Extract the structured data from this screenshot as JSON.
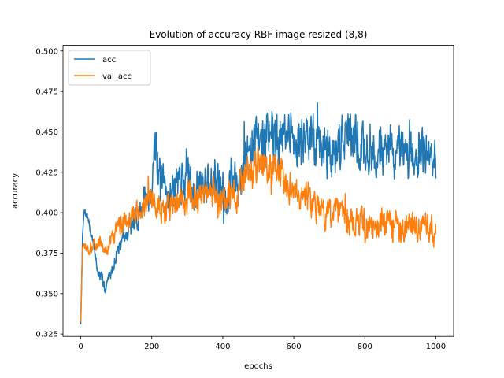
{
  "chart_data": {
    "type": "line",
    "title": "Evolution of accuracy RBF image resized (8,8)",
    "xlabel": "epochs",
    "ylabel": "accuracy",
    "xlim": [
      -50,
      1050
    ],
    "ylim": [
      0.3235,
      0.5035
    ],
    "x_ticks": [
      0,
      200,
      400,
      600,
      800,
      1000
    ],
    "y_ticks": [
      0.325,
      0.35,
      0.375,
      0.4,
      0.425,
      0.45,
      0.475,
      0.5
    ],
    "x_tick_labels": [
      "0",
      "200",
      "400",
      "600",
      "800",
      "1000"
    ],
    "y_tick_labels": [
      "0.325",
      "0.350",
      "0.375",
      "0.400",
      "0.425",
      "0.450",
      "0.475",
      "0.500"
    ],
    "grid": false,
    "legend_position": "upper-left",
    "series": [
      {
        "name": "acc",
        "color": "#1f77b4",
        "x": [
          0,
          5,
          10,
          20,
          30,
          40,
          50,
          60,
          70,
          80,
          90,
          100,
          120,
          140,
          160,
          180,
          200,
          210,
          220,
          240,
          260,
          280,
          300,
          320,
          340,
          360,
          380,
          400,
          420,
          440,
          460,
          480,
          500,
          520,
          540,
          560,
          580,
          600,
          620,
          640,
          660,
          680,
          700,
          720,
          740,
          760,
          780,
          800,
          820,
          840,
          860,
          880,
          900,
          920,
          940,
          960,
          980,
          1000
        ],
        "y": [
          0.331,
          0.385,
          0.402,
          0.398,
          0.385,
          0.375,
          0.362,
          0.358,
          0.355,
          0.36,
          0.365,
          0.375,
          0.382,
          0.39,
          0.398,
          0.408,
          0.415,
          0.45,
          0.42,
          0.41,
          0.415,
          0.418,
          0.422,
          0.415,
          0.418,
          0.42,
          0.415,
          0.41,
          0.418,
          0.425,
          0.43,
          0.44,
          0.445,
          0.448,
          0.45,
          0.442,
          0.445,
          0.448,
          0.44,
          0.445,
          0.442,
          0.44,
          0.435,
          0.44,
          0.45,
          0.445,
          0.442,
          0.44,
          0.435,
          0.438,
          0.44,
          0.437,
          0.432,
          0.435,
          0.438,
          0.436,
          0.434,
          0.43
        ],
        "noise": [
          0.002,
          0.004,
          0.004,
          0.005,
          0.006,
          0.006,
          0.006,
          0.006,
          0.006,
          0.006,
          0.006,
          0.006,
          0.008,
          0.01,
          0.012,
          0.015,
          0.02,
          0.025,
          0.022,
          0.02,
          0.02,
          0.02,
          0.02,
          0.02,
          0.022,
          0.022,
          0.022,
          0.022,
          0.022,
          0.022,
          0.025,
          0.026,
          0.028,
          0.028,
          0.026,
          0.026,
          0.026,
          0.026,
          0.026,
          0.026,
          0.026,
          0.026,
          0.026,
          0.026,
          0.028,
          0.028,
          0.026,
          0.026,
          0.024,
          0.024,
          0.024,
          0.024,
          0.024,
          0.024,
          0.022,
          0.022,
          0.022,
          0.022
        ],
        "points": 1000,
        "seed": 7
      },
      {
        "name": "val_acc",
        "color": "#ff7f0e",
        "x": [
          0,
          5,
          10,
          20,
          30,
          40,
          50,
          60,
          70,
          80,
          90,
          100,
          120,
          140,
          160,
          180,
          200,
          220,
          240,
          260,
          280,
          300,
          320,
          340,
          360,
          380,
          400,
          420,
          440,
          460,
          480,
          500,
          520,
          540,
          560,
          580,
          600,
          620,
          640,
          660,
          680,
          700,
          720,
          740,
          760,
          780,
          800,
          820,
          840,
          860,
          880,
          900,
          920,
          940,
          960,
          980,
          1000
        ],
        "y": [
          0.333,
          0.378,
          0.38,
          0.378,
          0.376,
          0.38,
          0.382,
          0.38,
          0.376,
          0.38,
          0.385,
          0.39,
          0.395,
          0.398,
          0.4,
          0.402,
          0.408,
          0.405,
          0.402,
          0.405,
          0.408,
          0.41,
          0.412,
          0.408,
          0.41,
          0.408,
          0.405,
          0.408,
          0.412,
          0.418,
          0.425,
          0.428,
          0.43,
          0.428,
          0.425,
          0.42,
          0.418,
          0.412,
          0.41,
          0.405,
          0.402,
          0.4,
          0.398,
          0.395,
          0.392,
          0.395,
          0.392,
          0.39,
          0.392,
          0.395,
          0.392,
          0.39,
          0.388,
          0.39,
          0.392,
          0.39,
          0.39
        ],
        "noise": [
          0.002,
          0.004,
          0.004,
          0.004,
          0.005,
          0.005,
          0.005,
          0.005,
          0.005,
          0.006,
          0.007,
          0.008,
          0.01,
          0.01,
          0.012,
          0.012,
          0.014,
          0.014,
          0.014,
          0.014,
          0.014,
          0.015,
          0.015,
          0.015,
          0.015,
          0.015,
          0.016,
          0.016,
          0.016,
          0.017,
          0.018,
          0.018,
          0.018,
          0.018,
          0.017,
          0.017,
          0.016,
          0.016,
          0.015,
          0.015,
          0.015,
          0.015,
          0.015,
          0.015,
          0.015,
          0.015,
          0.015,
          0.015,
          0.015,
          0.015,
          0.015,
          0.015,
          0.015,
          0.015,
          0.015,
          0.015,
          0.015
        ],
        "points": 1000,
        "seed": 13
      }
    ]
  }
}
